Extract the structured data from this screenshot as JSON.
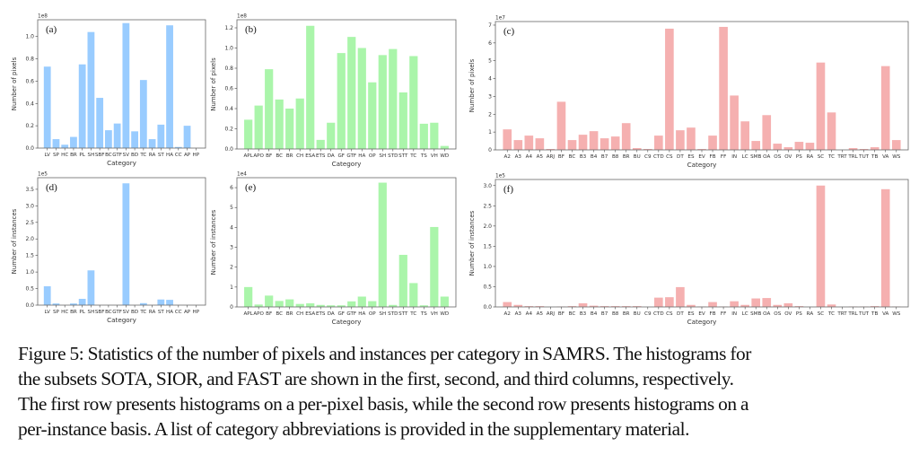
{
  "colors": {
    "sota": "#99ccff",
    "sior": "#aaf5aa",
    "fast": "#f5b0b0",
    "axis": "#555555",
    "text": "#333333"
  },
  "chart_data": [
    {
      "id": "a",
      "panel_label": "(a)",
      "type": "bar",
      "xlabel": "Category",
      "ylabel": "Number of pixels",
      "scale_label": "1e8",
      "ylim": [
        0,
        1.15
      ],
      "yticks": [
        "0.0",
        "0.2",
        "0.4",
        "0.6",
        "0.8",
        "1.0"
      ],
      "ytick_values": [
        0,
        0.2,
        0.4,
        0.6,
        0.8,
        1.0
      ],
      "color_key": "sota",
      "categories": [
        "LV",
        "SP",
        "HC",
        "BR",
        "PL",
        "SH",
        "SBF",
        "BC",
        "GTF",
        "SV",
        "BD",
        "TC",
        "RA",
        "ST",
        "HA",
        "CC",
        "AP",
        "HP"
      ],
      "values": [
        0.73,
        0.08,
        0.03,
        0.1,
        0.75,
        1.04,
        0.45,
        0.16,
        0.22,
        1.12,
        0.15,
        0.61,
        0.08,
        0.21,
        1.1,
        0.01,
        0.2,
        0.0
      ]
    },
    {
      "id": "b",
      "panel_label": "(b)",
      "type": "bar",
      "xlabel": "Category",
      "ylabel": "Number of pixels",
      "scale_label": "1e8",
      "ylim": [
        0,
        1.28
      ],
      "yticks": [
        "0.0",
        "0.2",
        "0.4",
        "0.6",
        "0.8",
        "1.0",
        "1.2"
      ],
      "ytick_values": [
        0,
        0.2,
        0.4,
        0.6,
        0.8,
        1.0,
        1.2
      ],
      "color_key": "sior",
      "categories": [
        "APL",
        "APO",
        "BF",
        "BC",
        "BR",
        "CH",
        "ESA",
        "ETS",
        "DA",
        "GF",
        "GTF",
        "HA",
        "OP",
        "SH",
        "STD",
        "STT",
        "TC",
        "TS",
        "VH",
        "WD"
      ],
      "values": [
        0.29,
        0.43,
        0.79,
        0.49,
        0.4,
        0.5,
        1.22,
        0.09,
        0.26,
        0.95,
        1.11,
        1.0,
        0.66,
        0.93,
        0.99,
        0.56,
        0.92,
        0.25,
        0.26,
        0.03
      ]
    },
    {
      "id": "c",
      "panel_label": "(c)",
      "type": "bar",
      "xlabel": "Category",
      "ylabel": "Number of pixels",
      "scale_label": "1e7",
      "ylim": [
        0,
        7.2
      ],
      "yticks": [
        "0",
        "1",
        "2",
        "3",
        "4",
        "5",
        "6",
        "7"
      ],
      "ytick_values": [
        0,
        1,
        2,
        3,
        4,
        5,
        6,
        7
      ],
      "color_key": "fast",
      "categories": [
        "A2",
        "A3",
        "A4",
        "A5",
        "ARJ",
        "BF",
        "BC",
        "B3",
        "B4",
        "B7",
        "B8",
        "BR",
        "BU",
        "C9",
        "CTD",
        "CS",
        "DT",
        "ES",
        "EV",
        "FB",
        "FF",
        "IN",
        "LC",
        "SMB",
        "OA",
        "OS",
        "OV",
        "PS",
        "RA",
        "SC",
        "TC",
        "TRT",
        "TRL",
        "TUT",
        "TB",
        "VA",
        "WS"
      ],
      "values": [
        1.15,
        0.55,
        0.8,
        0.65,
        0.05,
        2.7,
        0.55,
        0.85,
        1.05,
        0.65,
        0.75,
        1.5,
        0.1,
        0.05,
        0.8,
        6.8,
        1.1,
        1.25,
        0.05,
        0.8,
        6.9,
        3.05,
        1.6,
        0.5,
        1.95,
        0.35,
        0.15,
        0.45,
        0.4,
        4.9,
        2.1,
        0.0,
        0.1,
        0.05,
        0.15,
        4.7,
        0.55
      ]
    },
    {
      "id": "d",
      "panel_label": "(d)",
      "type": "bar",
      "xlabel": "Category",
      "ylabel": "Number of instances",
      "scale_label": "1e5",
      "ylim": [
        0,
        3.85
      ],
      "yticks": [
        "0.0",
        "0.5",
        "1.0",
        "1.5",
        "2.0",
        "2.5",
        "3.0",
        "3.5"
      ],
      "ytick_values": [
        0,
        0.5,
        1.0,
        1.5,
        2.0,
        2.5,
        3.0,
        3.5
      ],
      "color_key": "sota",
      "categories": [
        "LV",
        "SP",
        "HC",
        "BR",
        "PL",
        "SH",
        "SBF",
        "BC",
        "GTF",
        "SV",
        "BD",
        "TC",
        "RA",
        "ST",
        "HA",
        "CC",
        "AP",
        "HP"
      ],
      "values": [
        0.57,
        0.05,
        0.0,
        0.05,
        0.19,
        1.05,
        0.0,
        0.0,
        0.0,
        3.68,
        0.0,
        0.06,
        0.0,
        0.17,
        0.16,
        0.0,
        0.0,
        0.0
      ]
    },
    {
      "id": "e",
      "panel_label": "(e)",
      "type": "bar",
      "xlabel": "Category",
      "ylabel": "Number of instances",
      "scale_label": "1e4",
      "ylim": [
        0,
        6.5
      ],
      "yticks": [
        "0",
        "1",
        "2",
        "3",
        "4",
        "5",
        "6"
      ],
      "ytick_values": [
        0,
        1,
        2,
        3,
        4,
        5,
        6
      ],
      "color_key": "sior",
      "categories": [
        "APL",
        "APO",
        "BF",
        "BC",
        "BR",
        "CH",
        "ESA",
        "ETS",
        "DA",
        "GF",
        "GTF",
        "HA",
        "OP",
        "SH",
        "STD",
        "STT",
        "TC",
        "TS",
        "VH",
        "WD"
      ],
      "values": [
        1.0,
        0.12,
        0.57,
        0.3,
        0.38,
        0.15,
        0.18,
        0.1,
        0.08,
        0.08,
        0.28,
        0.52,
        0.29,
        6.25,
        0.1,
        2.62,
        1.2,
        0.08,
        4.02,
        0.52
      ]
    },
    {
      "id": "f",
      "panel_label": "(f)",
      "type": "bar",
      "xlabel": "Category",
      "ylabel": "Number of instances",
      "scale_label": "1e5",
      "ylim": [
        0,
        3.15
      ],
      "yticks": [
        "0.0",
        "0.5",
        "1.0",
        "1.5",
        "2.0",
        "2.5",
        "3.0"
      ],
      "ytick_values": [
        0,
        0.5,
        1.0,
        1.5,
        2.0,
        2.5,
        3.0
      ],
      "color_key": "fast",
      "categories": [
        "A2",
        "A3",
        "A4",
        "A5",
        "ARJ",
        "BF",
        "BC",
        "B3",
        "B4",
        "B7",
        "B8",
        "BR",
        "BU",
        "C9",
        "CTD",
        "CS",
        "DT",
        "ES",
        "EV",
        "FB",
        "FF",
        "IN",
        "LC",
        "SMB",
        "OA",
        "OS",
        "OV",
        "PS",
        "RA",
        "SC",
        "TC",
        "TRT",
        "TRL",
        "TUT",
        "TB",
        "VA",
        "WS"
      ],
      "values": [
        0.12,
        0.05,
        0.02,
        0.02,
        0.0,
        0.01,
        0.02,
        0.09,
        0.03,
        0.02,
        0.02,
        0.02,
        0.02,
        0.0,
        0.23,
        0.24,
        0.49,
        0.05,
        0.01,
        0.12,
        0.01,
        0.14,
        0.05,
        0.21,
        0.22,
        0.05,
        0.09,
        0.02,
        0.0,
        3.0,
        0.06,
        0.0,
        0.01,
        0.01,
        0.02,
        2.91,
        0.01
      ]
    }
  ],
  "caption": {
    "line1": "Figure 5: Statistics of the number of pixels and instances per category in SAMRS. The histograms for",
    "line2": "the subsets SOTA, SIOR, and FAST are shown in the first, second, and third columns, respectively.",
    "line3": "The first row presents histograms on a per-pixel basis, while the second row presents histograms on a",
    "line4": "per-instance basis. A list of category abbreviations is provided in the supplementary material."
  }
}
